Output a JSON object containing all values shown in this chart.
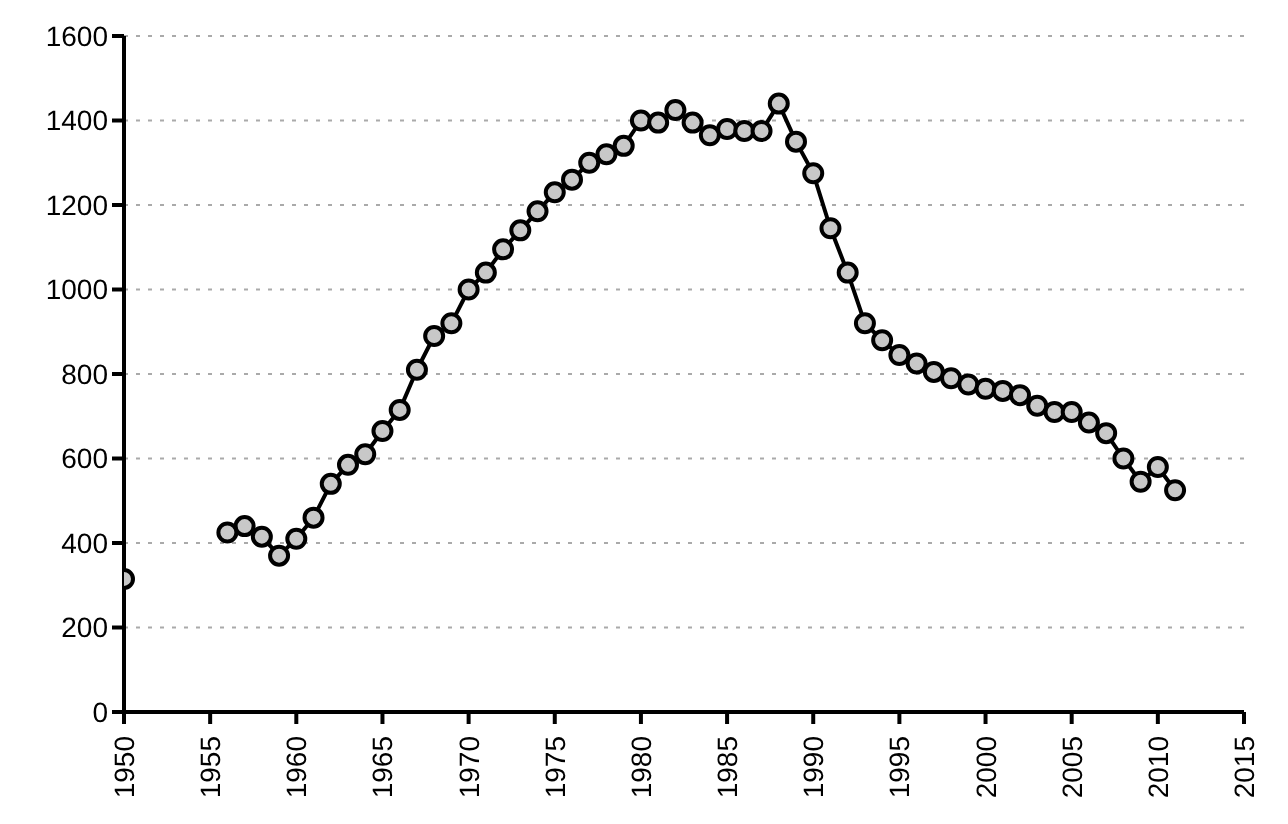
{
  "chart_data": {
    "type": "line",
    "x": [
      1950,
      1951,
      1952,
      1953,
      1954,
      1955,
      1956,
      1957,
      1958,
      1959,
      1960,
      1961,
      1962,
      1963,
      1964,
      1965,
      1966,
      1967,
      1968,
      1969,
      1970,
      1971,
      1972,
      1973,
      1974,
      1975,
      1976,
      1977,
      1978,
      1979,
      1980,
      1981,
      1982,
      1983,
      1984,
      1985,
      1986,
      1987,
      1988,
      1989,
      1990,
      1991,
      1992,
      1993,
      1994,
      1995,
      1996,
      1997,
      1998,
      1999,
      2000,
      2001,
      2002,
      2003,
      2004,
      2005,
      2006,
      2007,
      2008,
      2009,
      2010,
      2011
    ],
    "series": [
      {
        "color": "#000000",
        "values": [
          315,
          null,
          null,
          null,
          null,
          null,
          425,
          440,
          415,
          370,
          410,
          460,
          540,
          585,
          610,
          665,
          715,
          810,
          890,
          920,
          1000,
          1040,
          1095,
          1140,
          1185,
          1230,
          1260,
          1300,
          1320,
          1340,
          1400,
          1395,
          1425,
          1395,
          1365,
          1380,
          1375,
          1375,
          1440,
          1350,
          1275,
          1145,
          1040,
          920,
          880,
          845,
          825,
          805,
          790,
          775,
          765,
          760,
          750,
          725,
          710,
          710,
          685,
          660,
          600,
          545,
          580,
          525
        ]
      }
    ],
    "xlim": [
      1950,
      2015
    ],
    "xticks": [
      1950,
      1955,
      1960,
      1965,
      1970,
      1975,
      1980,
      1985,
      1990,
      1995,
      2000,
      2005,
      2010,
      2015
    ],
    "ylim": [
      0,
      1600
    ],
    "yticks": [
      0,
      200,
      400,
      600,
      800,
      1000,
      1200,
      1400,
      1600
    ],
    "grid": "y",
    "marker": "circle",
    "line_style": "solid"
  }
}
